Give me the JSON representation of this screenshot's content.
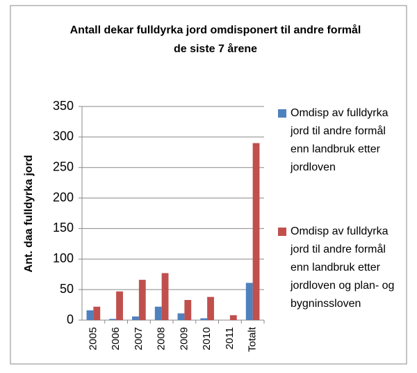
{
  "chart_data": {
    "type": "bar",
    "title": "Antall dekar fulldyrka jord omdisponert til andre formål  de siste 7 årene",
    "y_label": "Ant. daa fulldyrka jord",
    "categories": [
      "2005",
      "2006",
      "2007",
      "2008",
      "2009",
      "2010",
      "2011",
      "Totalt"
    ],
    "series": [
      {
        "name": "Omdisp av fulldyrka jord til andre formål enn landbruk etter jordloven",
        "color": "#4f81bd",
        "values": [
          16,
          2,
          6,
          22,
          11,
          3,
          0,
          61
        ]
      },
      {
        "name": "Omdisp av fulldyrka jord til andre formål enn landbruk etter jordloven og plan- og bygninssloven",
        "color": "#c0504d",
        "values": [
          22,
          47,
          66,
          77,
          33,
          38,
          8,
          290
        ]
      }
    ],
    "ylim": [
      0,
      350
    ],
    "yticks": [
      0,
      50,
      100,
      150,
      200,
      250,
      300,
      350
    ],
    "grid": true,
    "legend": "right"
  }
}
